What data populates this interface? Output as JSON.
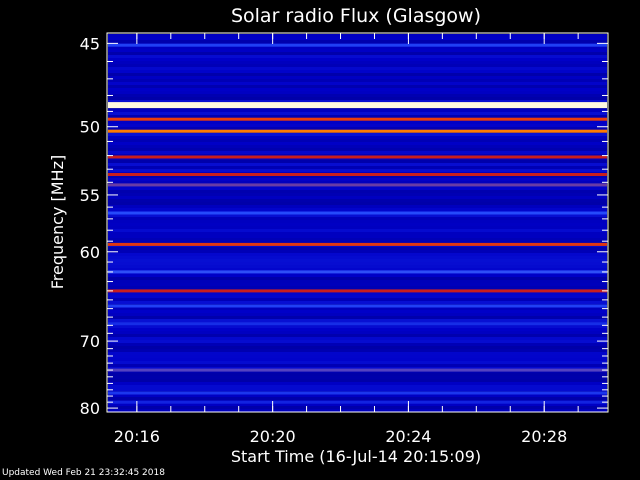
{
  "chart_data": {
    "type": "heatmap",
    "title": "Solar radio Flux (Glasgow)",
    "xlabel": "Start Time (16-Jul-14 20:15:09)",
    "ylabel": "Frequency [MHz]",
    "x_ticks": [
      "20:16",
      "20:20",
      "20:24",
      "20:28"
    ],
    "x_tick_minutes": [
      0.85,
      4.85,
      8.85,
      12.85
    ],
    "x_range_minutes": [
      0,
      14.7
    ],
    "y_ticks": [
      45,
      50,
      55,
      60,
      70,
      80
    ],
    "y_range": [
      44.5,
      80.5
    ],
    "y_scale": "reciprocal",
    "grid": false,
    "colormap": [
      "#000050",
      "#0000c8",
      "#2850ff",
      "#c81e1e",
      "#ff5000",
      "#ffd200",
      "#ffffff"
    ],
    "background_level": 0.16,
    "bands": [
      {
        "freq": 45.1,
        "level": 0.3
      },
      {
        "freq": 48.6,
        "level": 0.98
      },
      {
        "freq": 49.5,
        "level": 0.6
      },
      {
        "freq": 50.3,
        "level": 0.72
      },
      {
        "freq": 52.1,
        "level": 0.5
      },
      {
        "freq": 53.4,
        "level": 0.5
      },
      {
        "freq": 54.2,
        "level": 0.4
      },
      {
        "freq": 56.5,
        "level": 0.32
      },
      {
        "freq": 59.3,
        "level": 0.58
      },
      {
        "freq": 62.0,
        "level": 0.34
      },
      {
        "freq": 64.0,
        "level": 0.5
      },
      {
        "freq": 65.7,
        "level": 0.3
      },
      {
        "freq": 67.8,
        "level": 0.26
      },
      {
        "freq": 74.0,
        "level": 0.38
      },
      {
        "freq": 77.5,
        "level": 0.28
      },
      {
        "freq": 79.0,
        "level": 0.24
      }
    ],
    "footer": "Updated Wed Feb 21 23:32:45 2018"
  }
}
